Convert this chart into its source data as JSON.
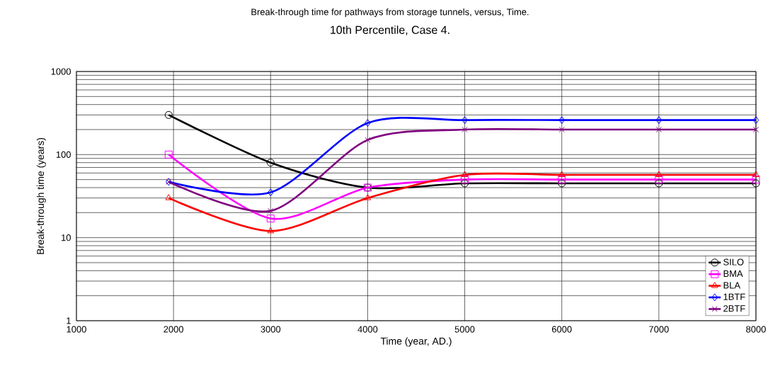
{
  "chart_data": {
    "type": "line",
    "title": "Break-through time for pathways from storage tunnels, versus, Time.",
    "subtitle": "10th Percentile,  Case 4.",
    "xlabel": "Time (year, AD.)",
    "ylabel": "Break-through time (years)",
    "x": [
      1950,
      3000,
      4000,
      5000,
      6000,
      7000,
      8000
    ],
    "series": [
      {
        "name": "SILO",
        "color": "#000000",
        "marker": "circle",
        "values": [
          300,
          80,
          40,
          45,
          45,
          45,
          45
        ]
      },
      {
        "name": "BMA",
        "color": "#ff00ff",
        "marker": "square",
        "values": [
          100,
          17,
          40,
          50,
          50,
          50,
          50
        ]
      },
      {
        "name": "BLA",
        "color": "#ff0000",
        "marker": "triangle",
        "values": [
          30,
          12,
          30,
          57,
          57,
          57,
          57
        ]
      },
      {
        "name": "1BTF",
        "color": "#0000ff",
        "marker": "diamond",
        "values": [
          47,
          35,
          240,
          260,
          260,
          260,
          260
        ]
      },
      {
        "name": "2BTF",
        "color": "#800080",
        "marker": "cross",
        "values": [
          47,
          21,
          150,
          200,
          200,
          200,
          200
        ]
      }
    ],
    "xlim": [
      1000,
      8000
    ],
    "ylim": [
      1,
      1000
    ],
    "xticks": [
      1000,
      2000,
      3000,
      4000,
      5000,
      6000,
      7000,
      8000
    ],
    "yticks": [
      1,
      10,
      100,
      1000
    ],
    "log": "y",
    "grid": true,
    "legend": "bottom right",
    "line_style": "solid"
  }
}
